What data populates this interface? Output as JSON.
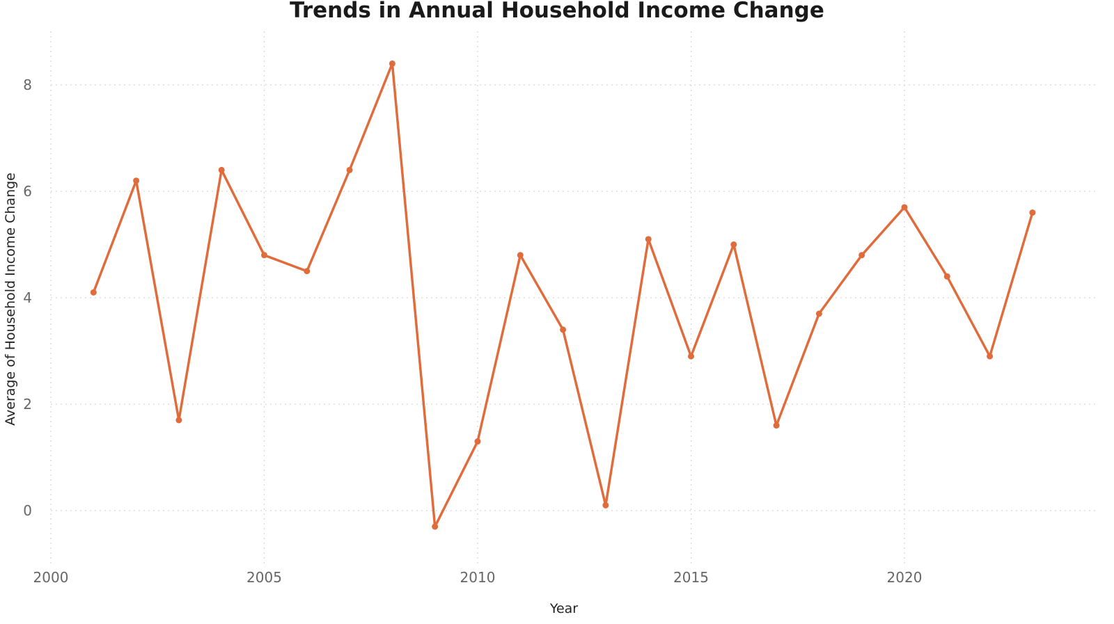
{
  "chart_data": {
    "type": "line",
    "title": "Trends in Annual Household Income Change",
    "xlabel": "Year",
    "ylabel": "Average of Household Income Change",
    "x": [
      2001,
      2002,
      2003,
      2004,
      2005,
      2006,
      2007,
      2008,
      2009,
      2010,
      2011,
      2012,
      2013,
      2014,
      2015,
      2016,
      2017,
      2018,
      2019,
      2020,
      2021,
      2022,
      2023
    ],
    "series": [
      {
        "values": [
          4.1,
          6.2,
          1.7,
          6.4,
          4.8,
          4.5,
          6.4,
          8.4,
          -0.3,
          1.3,
          4.8,
          3.4,
          0.1,
          5.1,
          2.9,
          5.0,
          1.6,
          3.7,
          4.8,
          5.7,
          4.4,
          2.9,
          5.6
        ],
        "color": "#E06C3C"
      }
    ],
    "xlim": [
      2000,
      2024.5
    ],
    "ylim": [
      -1.0,
      8.9
    ],
    "xticks": [
      2000,
      2005,
      2010,
      2015,
      2020
    ],
    "yticks": [
      0,
      2,
      4,
      6,
      8
    ],
    "grid": true,
    "legend": "none"
  }
}
